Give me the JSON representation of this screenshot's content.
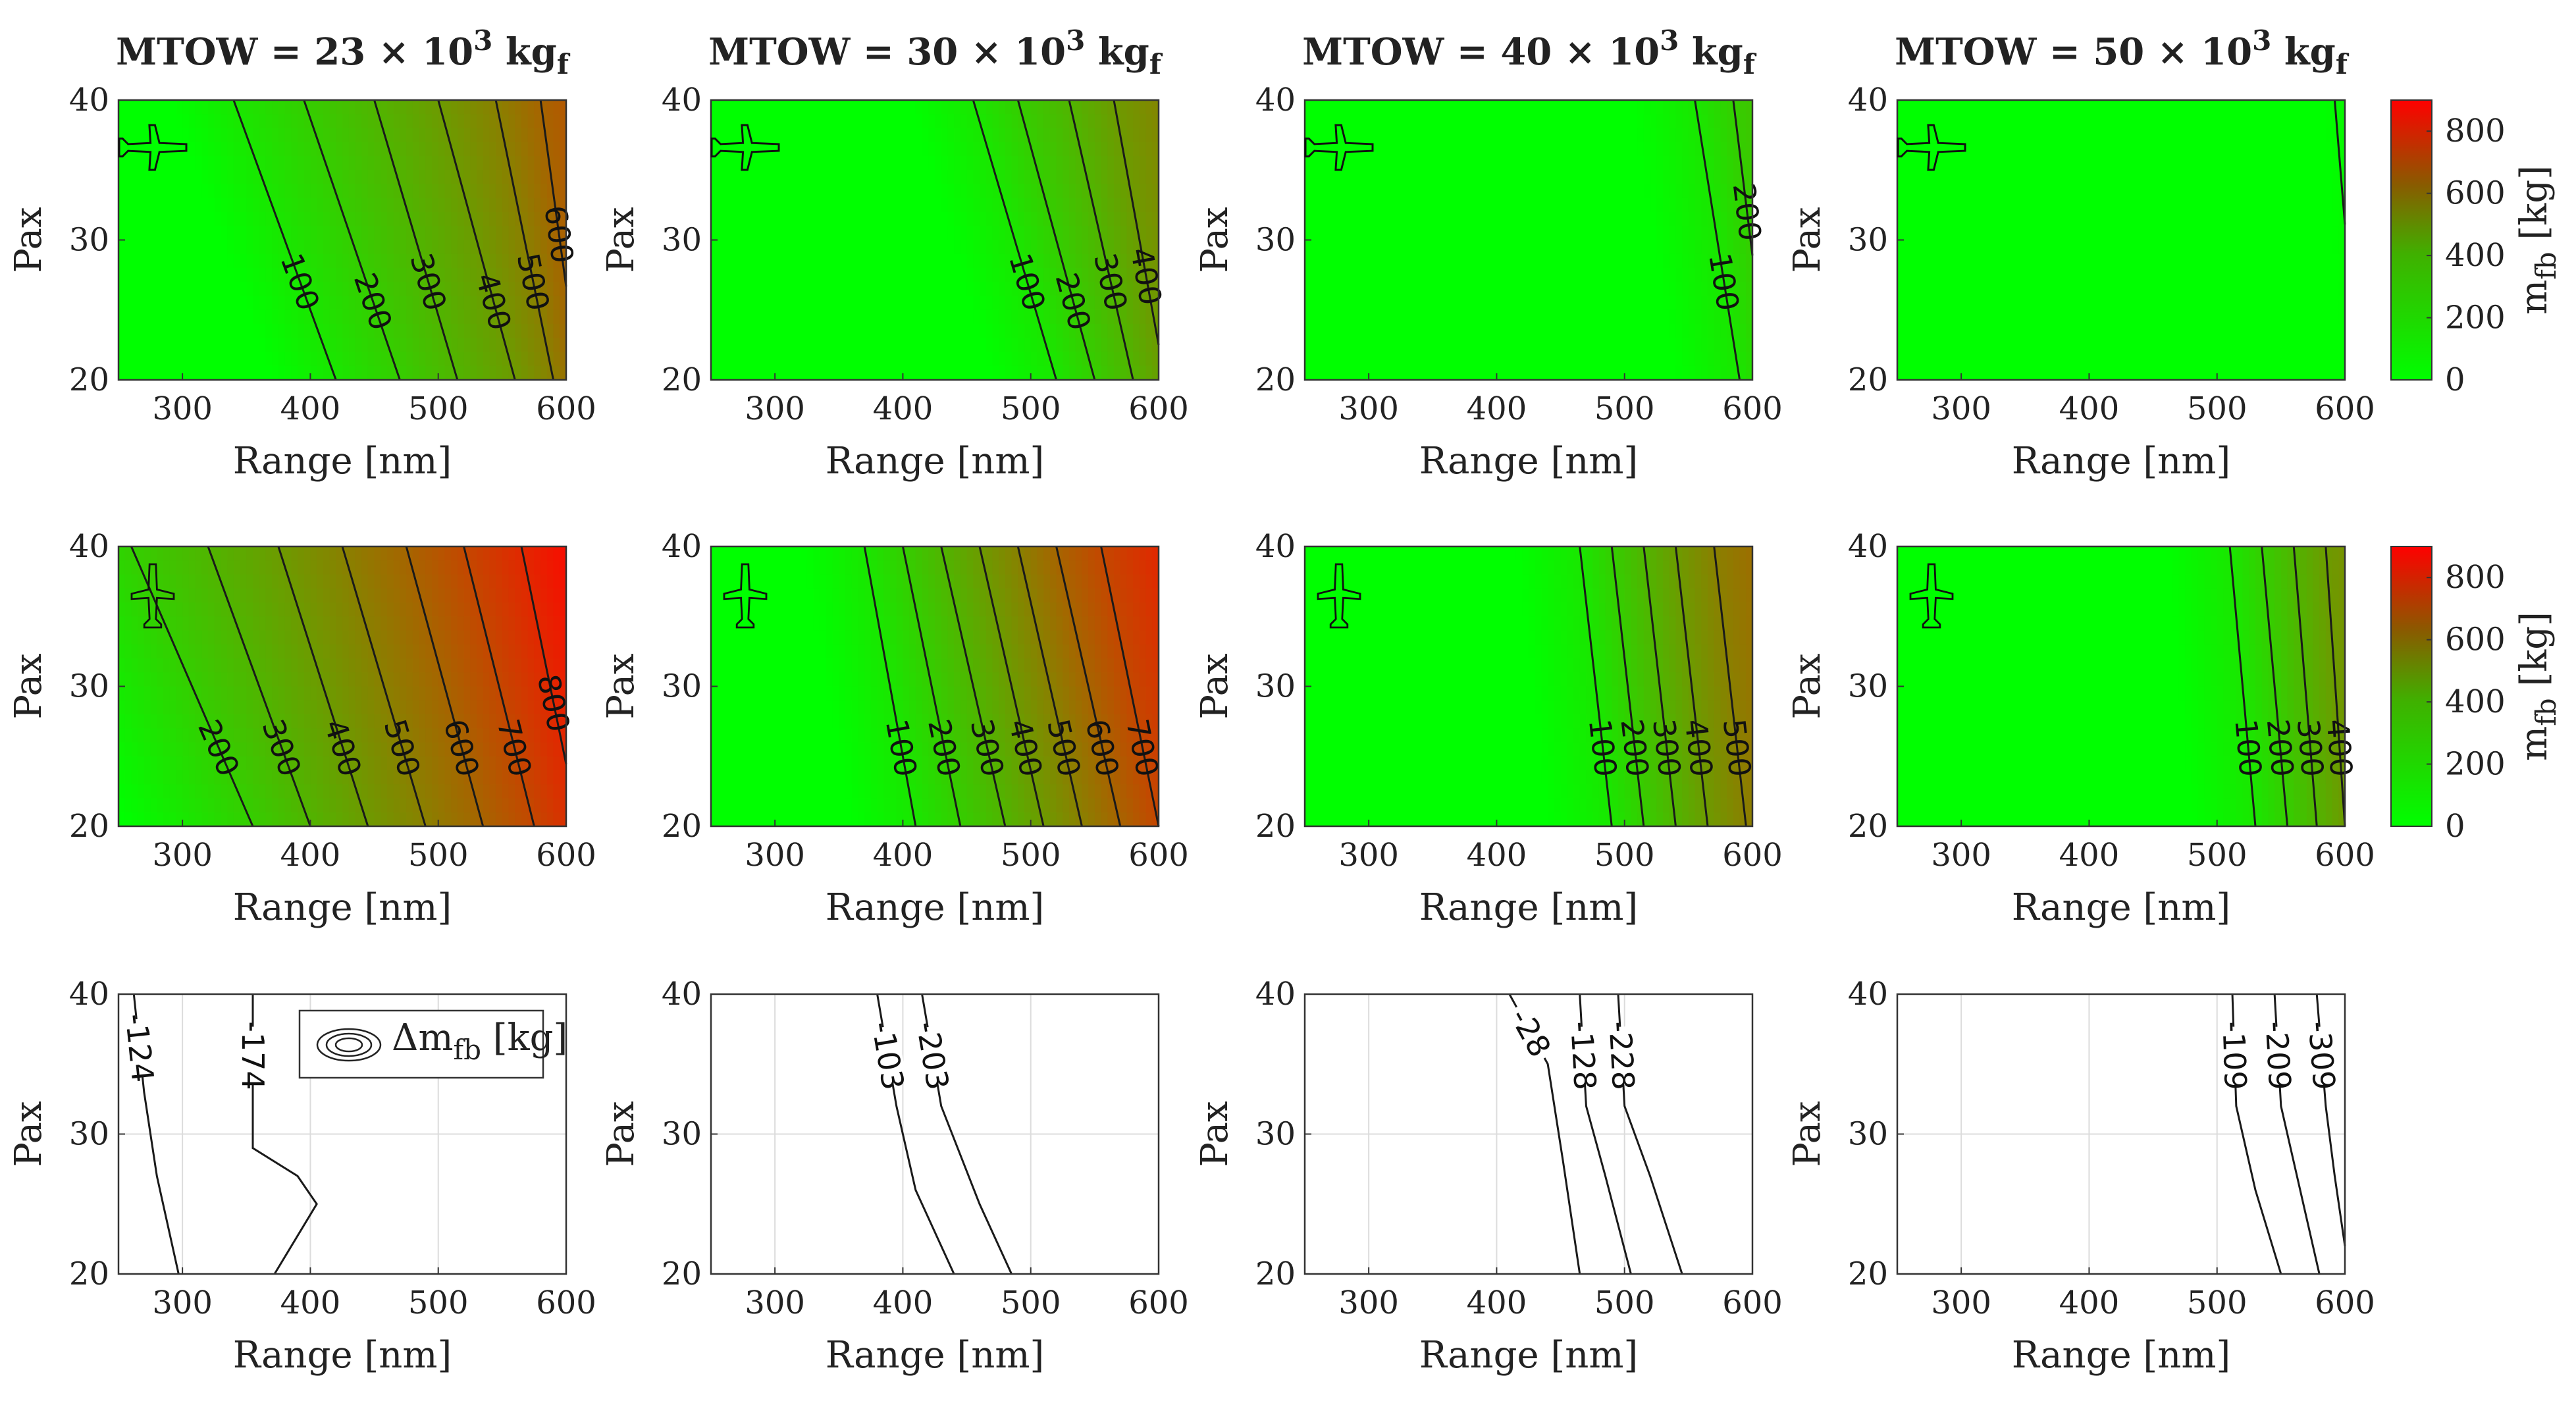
{
  "figure": {
    "xlabel": "Range [nm]",
    "ylabel": "Pax",
    "x_ticks": [
      "300",
      "400",
      "500",
      "600"
    ],
    "y_ticks": [
      "20",
      "30",
      "40"
    ],
    "columns": [
      {
        "title": "MTOW = 23 × 10",
        "exp": "3",
        "unit": " kg",
        "sub": "f"
      },
      {
        "title": "MTOW = 30 × 10",
        "exp": "3",
        "unit": " kg",
        "sub": "f"
      },
      {
        "title": "MTOW = 40 × 10",
        "exp": "3",
        "unit": " kg",
        "sub": "f"
      },
      {
        "title": "MTOW = 50 × 10",
        "exp": "3",
        "unit": " kg",
        "sub": "f"
      }
    ],
    "colorbar": {
      "label_main": "m",
      "label_sub": "fb",
      "label_unit": " [kg]",
      "ticks": [
        "800",
        "600",
        "400",
        "200",
        "0"
      ],
      "color_low": "#00ff00",
      "color_high": "#ff0000"
    },
    "legend": {
      "label_main": "Δm",
      "label_sub": "fb",
      "label_unit": " [kg]"
    }
  },
  "chart_data": [
    {
      "type": "contour",
      "row": 1,
      "col": 1,
      "title": "MTOW = 23 × 10^3 kgf",
      "xlabel": "Range [nm]",
      "ylabel": "Pax",
      "xlim": [
        250,
        600
      ],
      "ylim": [
        20,
        40
      ],
      "clim": [
        0,
        900
      ],
      "levels": [
        {
          "value": 100,
          "label": "100",
          "x_at_pax40": 340,
          "x_at_pax20": 420
        },
        {
          "value": 200,
          "label": "200",
          "x_at_pax40": 395,
          "x_at_pax20": 470
        },
        {
          "value": 300,
          "label": "300",
          "x_at_pax40": 450,
          "x_at_pax20": 515
        },
        {
          "value": 400,
          "label": "400",
          "x_at_pax40": 500,
          "x_at_pax20": 560
        },
        {
          "value": 500,
          "label": "500",
          "x_at_pax40": 545,
          "x_at_pax20": 590
        },
        {
          "value": 600,
          "label": "600",
          "x_at_pax40": 580,
          "x_at_pax20": 610
        }
      ]
    },
    {
      "type": "contour",
      "row": 1,
      "col": 2,
      "title": "MTOW = 30 × 10^3 kgf",
      "xlabel": "Range [nm]",
      "ylabel": "Pax",
      "xlim": [
        250,
        600
      ],
      "ylim": [
        20,
        40
      ],
      "clim": [
        0,
        900
      ],
      "levels": [
        {
          "value": 100,
          "label": "100",
          "x_at_pax40": 455,
          "x_at_pax20": 520
        },
        {
          "value": 200,
          "label": "200",
          "x_at_pax40": 490,
          "x_at_pax20": 550
        },
        {
          "value": 300,
          "label": "300",
          "x_at_pax40": 530,
          "x_at_pax20": 580
        },
        {
          "value": 400,
          "label": "400",
          "x_at_pax40": 565,
          "x_at_pax20": 605
        }
      ]
    },
    {
      "type": "contour",
      "row": 1,
      "col": 3,
      "title": "MTOW = 40 × 10^3 kgf",
      "xlabel": "Range [nm]",
      "ylabel": "Pax",
      "xlim": [
        250,
        600
      ],
      "ylim": [
        20,
        40
      ],
      "clim": [
        0,
        900
      ],
      "levels": [
        {
          "value": 100,
          "label": "100",
          "x_at_pax40": 555,
          "x_at_pax20": 590
        },
        {
          "value": 200,
          "label": "200",
          "x_at_pax40": 585,
          "x_at_pax20": 612
        }
      ]
    },
    {
      "type": "contour",
      "row": 1,
      "col": 4,
      "title": "MTOW = 50 × 10^3 kgf",
      "xlabel": "Range [nm]",
      "ylabel": "Pax",
      "xlim": [
        250,
        600
      ],
      "ylim": [
        20,
        40
      ],
      "clim": [
        0,
        900
      ],
      "levels": [
        {
          "value": 20,
          "label": "",
          "x_at_pax40": 592,
          "x_at_pax20": 610
        }
      ]
    },
    {
      "type": "contour",
      "row": 2,
      "col": 1,
      "title": "",
      "xlabel": "Range [nm]",
      "ylabel": "Pax",
      "xlim": [
        250,
        600
      ],
      "ylim": [
        20,
        40
      ],
      "clim": [
        0,
        900
      ],
      "levels": [
        {
          "value": 200,
          "label": "200",
          "x_at_pax40": 260,
          "x_at_pax20": 355
        },
        {
          "value": 300,
          "label": "300",
          "x_at_pax40": 320,
          "x_at_pax20": 400
        },
        {
          "value": 400,
          "label": "400",
          "x_at_pax40": 375,
          "x_at_pax20": 445
        },
        {
          "value": 500,
          "label": "500",
          "x_at_pax40": 425,
          "x_at_pax20": 490
        },
        {
          "value": 600,
          "label": "600",
          "x_at_pax40": 475,
          "x_at_pax20": 535
        },
        {
          "value": 700,
          "label": "700",
          "x_at_pax40": 520,
          "x_at_pax20": 575
        },
        {
          "value": 800,
          "label": "800",
          "x_at_pax40": 565,
          "x_at_pax20": 610
        }
      ]
    },
    {
      "type": "contour",
      "row": 2,
      "col": 2,
      "title": "",
      "xlabel": "Range [nm]",
      "ylabel": "Pax",
      "xlim": [
        250,
        600
      ],
      "ylim": [
        20,
        40
      ],
      "clim": [
        0,
        900
      ],
      "levels": [
        {
          "value": 100,
          "label": "100",
          "x_at_pax40": 370,
          "x_at_pax20": 410
        },
        {
          "value": 200,
          "label": "200",
          "x_at_pax40": 400,
          "x_at_pax20": 445
        },
        {
          "value": 300,
          "label": "300",
          "x_at_pax40": 430,
          "x_at_pax20": 480
        },
        {
          "value": 400,
          "label": "400",
          "x_at_pax40": 460,
          "x_at_pax20": 510
        },
        {
          "value": 500,
          "label": "500",
          "x_at_pax40": 490,
          "x_at_pax20": 540
        },
        {
          "value": 600,
          "label": "600",
          "x_at_pax40": 520,
          "x_at_pax20": 570
        },
        {
          "value": 700,
          "label": "700",
          "x_at_pax40": 555,
          "x_at_pax20": 600
        }
      ]
    },
    {
      "type": "contour",
      "row": 2,
      "col": 3,
      "title": "",
      "xlabel": "Range [nm]",
      "ylabel": "Pax",
      "xlim": [
        250,
        600
      ],
      "ylim": [
        20,
        40
      ],
      "clim": [
        0,
        900
      ],
      "levels": [
        {
          "value": 100,
          "label": "100",
          "x_at_pax40": 465,
          "x_at_pax20": 490
        },
        {
          "value": 200,
          "label": "200",
          "x_at_pax40": 490,
          "x_at_pax20": 515
        },
        {
          "value": 300,
          "label": "300",
          "x_at_pax40": 515,
          "x_at_pax20": 540
        },
        {
          "value": 400,
          "label": "400",
          "x_at_pax40": 540,
          "x_at_pax20": 565
        },
        {
          "value": 500,
          "label": "500",
          "x_at_pax40": 570,
          "x_at_pax20": 595
        }
      ]
    },
    {
      "type": "contour",
      "row": 2,
      "col": 4,
      "title": "",
      "xlabel": "Range [nm]",
      "ylabel": "Pax",
      "xlim": [
        250,
        600
      ],
      "ylim": [
        20,
        40
      ],
      "clim": [
        0,
        900
      ],
      "levels": [
        {
          "value": 100,
          "label": "100",
          "x_at_pax40": 510,
          "x_at_pax20": 530
        },
        {
          "value": 200,
          "label": "200",
          "x_at_pax40": 535,
          "x_at_pax20": 555
        },
        {
          "value": 300,
          "label": "300",
          "x_at_pax40": 560,
          "x_at_pax20": 578
        },
        {
          "value": 400,
          "label": "400",
          "x_at_pax40": 585,
          "x_at_pax20": 600
        }
      ]
    },
    {
      "type": "contour_lines",
      "row": 3,
      "col": 1,
      "title": "",
      "xlabel": "Range [nm]",
      "ylabel": "Pax",
      "xlim": [
        250,
        600
      ],
      "ylim": [
        20,
        40
      ],
      "lines": [
        {
          "label": "-124",
          "points": [
            [
              262,
              40
            ],
            [
              270,
              33
            ],
            [
              280,
              27
            ],
            [
              297,
              20
            ]
          ]
        },
        {
          "label": "-174",
          "points": [
            [
              355,
              40
            ],
            [
              355,
              32
            ],
            [
              355,
              29
            ],
            [
              390,
              27
            ],
            [
              405,
              25
            ],
            [
              372,
              20
            ]
          ]
        }
      ]
    },
    {
      "type": "contour_lines",
      "row": 3,
      "col": 2,
      "title": "",
      "xlabel": "Range [nm]",
      "ylabel": "Pax",
      "xlim": [
        250,
        600
      ],
      "ylim": [
        20,
        40
      ],
      "lines": [
        {
          "label": "-103",
          "points": [
            [
              380,
              40
            ],
            [
              395,
              32
            ],
            [
              410,
              26
            ],
            [
              440,
              20
            ]
          ]
        },
        {
          "label": "-203",
          "points": [
            [
              415,
              40
            ],
            [
              430,
              32
            ],
            [
              460,
              25
            ],
            [
              485,
              20
            ]
          ]
        }
      ]
    },
    {
      "type": "contour_lines",
      "row": 3,
      "col": 3,
      "title": "",
      "xlabel": "Range [nm]",
      "ylabel": "Pax",
      "xlim": [
        250,
        600
      ],
      "ylim": [
        20,
        40
      ],
      "lines": [
        {
          "label": "-28",
          "points": [
            [
              410,
              40
            ],
            [
              440,
              35
            ],
            [
              452,
              28
            ],
            [
              465,
              20
            ]
          ]
        },
        {
          "label": "-128",
          "points": [
            [
              465,
              40
            ],
            [
              470,
              32
            ],
            [
              485,
              27
            ],
            [
              505,
              20
            ]
          ]
        },
        {
          "label": "-228",
          "points": [
            [
              495,
              40
            ],
            [
              500,
              32
            ],
            [
              520,
              27
            ],
            [
              545,
              20
            ]
          ]
        }
      ]
    },
    {
      "type": "contour_lines",
      "row": 3,
      "col": 4,
      "title": "",
      "xlabel": "Range [nm]",
      "ylabel": "Pax",
      "xlim": [
        250,
        600
      ],
      "ylim": [
        20,
        40
      ],
      "lines": [
        {
          "label": "-109",
          "points": [
            [
              512,
              40
            ],
            [
              515,
              32
            ],
            [
              530,
              26
            ],
            [
              550,
              20
            ]
          ]
        },
        {
          "label": "-209",
          "points": [
            [
              545,
              40
            ],
            [
              550,
              32
            ],
            [
              565,
              26
            ],
            [
              580,
              20
            ]
          ]
        },
        {
          "label": "-309",
          "points": [
            [
              578,
              40
            ],
            [
              585,
              32
            ],
            [
              592,
              27
            ],
            [
              600,
              22
            ]
          ]
        }
      ]
    }
  ]
}
